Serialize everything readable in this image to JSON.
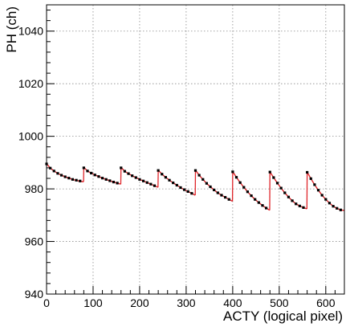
{
  "chart_data": {
    "type": "scatter",
    "title": "",
    "xlabel": "ACTY (logical pixel)",
    "ylabel": "PH (ch)",
    "xlim": [
      0,
      640
    ],
    "ylim": [
      940,
      1050
    ],
    "x_ticks": [
      0,
      100,
      200,
      300,
      400,
      500,
      600
    ],
    "y_ticks": [
      940,
      960,
      980,
      1000,
      1020,
      1040
    ],
    "grid": true,
    "legend": "none",
    "colors": {
      "points": "#000000",
      "fit": "#e0262b"
    },
    "series": [
      {
        "kind": "points",
        "x": [
          0,
          8,
          16,
          24,
          32,
          40,
          48,
          56,
          64,
          72,
          80,
          88,
          96,
          104,
          112,
          120,
          128,
          136,
          144,
          152,
          160,
          168,
          176,
          184,
          192,
          200,
          208,
          216,
          224,
          232,
          240,
          248,
          256,
          264,
          272,
          280,
          288,
          296,
          304,
          312,
          320,
          328,
          336,
          344,
          352,
          360,
          368,
          376,
          384,
          392,
          400,
          408,
          416,
          424,
          432,
          440,
          448,
          456,
          464,
          472,
          480,
          488,
          496,
          504,
          512,
          520,
          528,
          536,
          544,
          552,
          560,
          568,
          576,
          584,
          592,
          600,
          608,
          616,
          624,
          632
        ],
        "y": [
          989.5,
          987.9,
          986.8,
          985.9,
          985.2,
          984.6,
          984.1,
          983.6,
          983.3,
          983.0,
          988.0,
          986.8,
          986.0,
          985.3,
          984.7,
          984.1,
          983.6,
          983.1,
          982.6,
          982.2,
          988.0,
          986.7,
          985.8,
          985.0,
          984.3,
          983.6,
          983.0,
          982.4,
          981.8,
          981.2,
          987.0,
          985.6,
          984.4,
          983.3,
          982.3,
          981.4,
          980.5,
          979.7,
          979.0,
          978.3,
          987.0,
          985.2,
          983.6,
          982.1,
          980.8,
          979.6,
          978.5,
          977.6,
          976.8,
          976.0,
          986.5,
          984.4,
          982.4,
          980.6,
          978.9,
          977.4,
          976.0,
          974.8,
          973.7,
          972.7,
          986.4,
          984.3,
          982.2,
          980.3,
          978.5,
          976.9,
          975.5,
          974.3,
          973.5,
          972.9,
          986.3,
          983.9,
          981.6,
          979.5,
          977.6,
          976.0,
          974.6,
          973.4,
          972.6,
          972.0
        ]
      },
      {
        "kind": "fit",
        "segments": [
          {
            "x": [
              0,
              8,
              16,
              24,
              32,
              40,
              48,
              56,
              64,
              72,
              79.5
            ],
            "y": [
              989.6,
              987.9,
              986.8,
              985.9,
              985.2,
              984.6,
              984.1,
              983.6,
              983.2,
              982.9,
              982.7
            ]
          },
          {
            "x": [
              80,
              88,
              96,
              104,
              112,
              120,
              128,
              136,
              144,
              152,
              159.5
            ],
            "y": [
              988.2,
              986.8,
              986.0,
              985.3,
              984.7,
              984.1,
              983.6,
              983.1,
              982.6,
              982.2,
              981.8
            ]
          },
          {
            "x": [
              160,
              168,
              176,
              184,
              192,
              200,
              208,
              216,
              224,
              232,
              239.5
            ],
            "y": [
              988.2,
              986.7,
              985.8,
              985.0,
              984.3,
              983.6,
              983.0,
              982.4,
              981.8,
              981.2,
              980.6
            ]
          },
          {
            "x": [
              240,
              248,
              256,
              264,
              272,
              280,
              288,
              296,
              304,
              312,
              319.5
            ],
            "y": [
              987.1,
              985.6,
              984.4,
              983.3,
              982.3,
              981.4,
              980.5,
              979.7,
              979.0,
              978.3,
              977.6
            ]
          },
          {
            "x": [
              320,
              328,
              336,
              344,
              352,
              360,
              368,
              376,
              384,
              392,
              399.5
            ],
            "y": [
              987.1,
              985.2,
              983.6,
              982.1,
              980.8,
              979.6,
              978.5,
              977.6,
              976.8,
              976.0,
              975.3
            ]
          },
          {
            "x": [
              400,
              408,
              416,
              424,
              432,
              440,
              448,
              456,
              464,
              472,
              479.5
            ],
            "y": [
              986.6,
              984.4,
              982.4,
              980.6,
              978.9,
              977.4,
              976.0,
              974.8,
              973.7,
              972.7,
              971.9
            ]
          },
          {
            "x": [
              480,
              488,
              496,
              504,
              512,
              520,
              528,
              536,
              544,
              552,
              559.5
            ],
            "y": [
              986.5,
              984.3,
              982.2,
              980.3,
              978.5,
              976.9,
              975.5,
              974.3,
              973.5,
              972.9,
              972.4
            ]
          },
          {
            "x": [
              560,
              568,
              576,
              584,
              592,
              600,
              608,
              616,
              624,
              632,
              640
            ],
            "y": [
              986.4,
              983.9,
              981.6,
              979.5,
              977.6,
              976.0,
              974.6,
              973.4,
              972.6,
              972.0,
              971.8
            ]
          }
        ]
      }
    ]
  }
}
